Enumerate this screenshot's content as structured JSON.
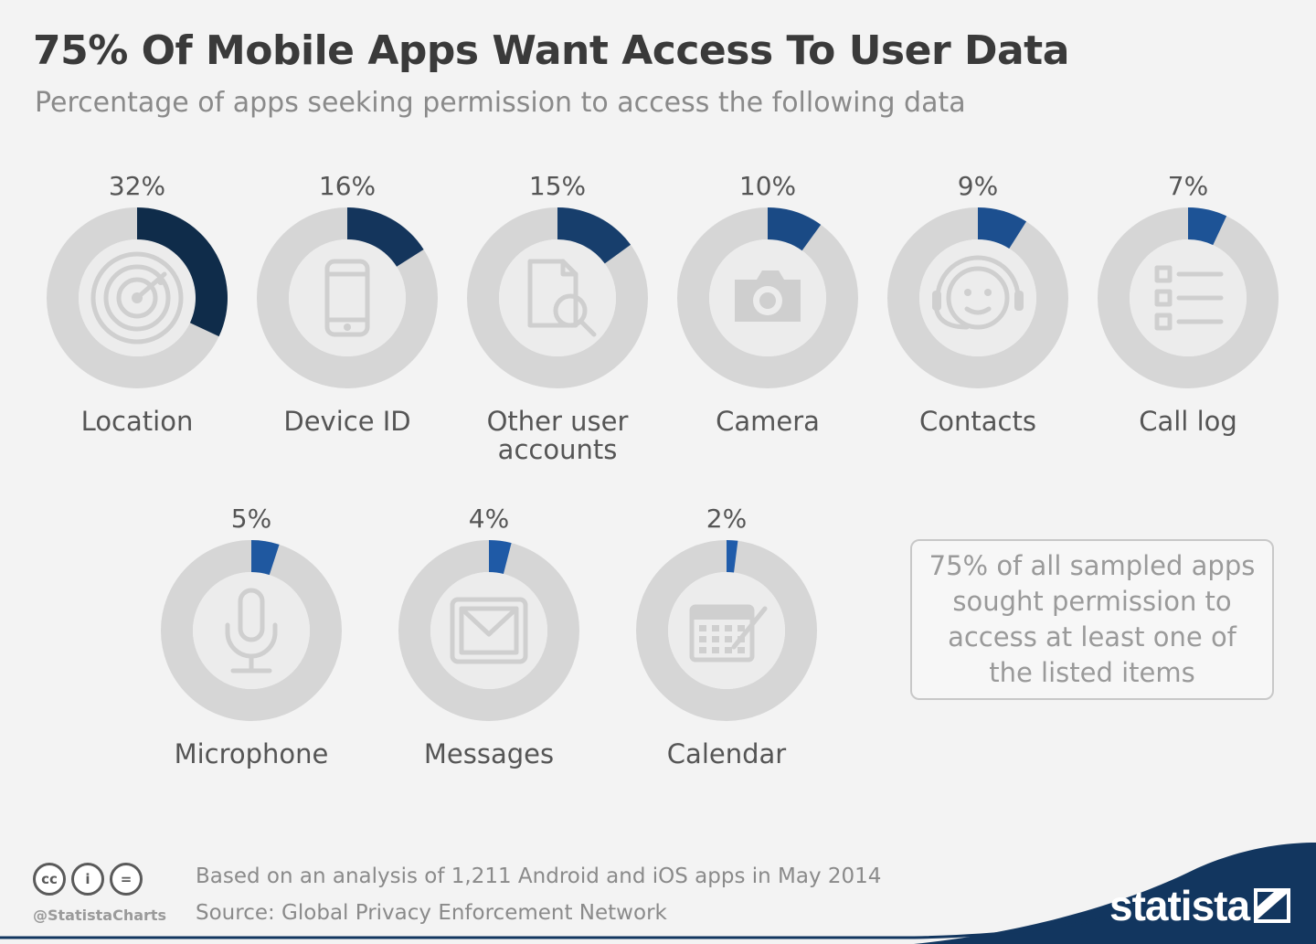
{
  "title": "75% Of Mobile Apps Want Access To User Data",
  "subtitle": "Percentage of apps seeking permission to access the following data",
  "note": "75% of all sampled apps sought permission to access at least one of the listed items",
  "footer": {
    "license_icons": [
      "cc-icon",
      "person-icon",
      "equals-icon"
    ],
    "license_glyphs": [
      "cc",
      "i",
      "="
    ],
    "handle": "@StatistaCharts",
    "based_on": "Based on an analysis of 1,211 Android and iOS apps in May 2014",
    "source": "Source: Global Privacy Enforcement Network",
    "brand": "statista"
  },
  "colors": {
    "background": "#f3f3f3",
    "ring_track": "#d6d6d6",
    "ring_inner": "#ececec",
    "icon": "#cfcfcf",
    "accent_dark": "#0f2c4a",
    "accent_mid": "#173e6c",
    "accent_bright": "#1f5aa6",
    "brand_wave": "#12365f"
  },
  "chart_data": {
    "type": "donut",
    "unit": "%",
    "items": [
      {
        "label": "Location",
        "value": 32,
        "value_label": "32%",
        "icon": "radar-icon",
        "color": "#0f2c4a"
      },
      {
        "label": "Device ID",
        "value": 16,
        "value_label": "16%",
        "icon": "smartphone-icon",
        "color": "#14355c"
      },
      {
        "label": "Other user accounts",
        "value": 15,
        "value_label": "15%",
        "icon": "document-search-icon",
        "color": "#173e6c"
      },
      {
        "label": "Camera",
        "value": 10,
        "value_label": "10%",
        "icon": "camera-icon",
        "color": "#1a4a85"
      },
      {
        "label": "Contacts",
        "value": 9,
        "value_label": "9%",
        "icon": "headset-face-icon",
        "color": "#1c4f8f"
      },
      {
        "label": "Call log",
        "value": 7,
        "value_label": "7%",
        "icon": "checklist-icon",
        "color": "#1d5396"
      },
      {
        "label": "Microphone",
        "value": 5,
        "value_label": "5%",
        "icon": "microphone-icon",
        "color": "#1f58a0"
      },
      {
        "label": "Messages",
        "value": 4,
        "value_label": "4%",
        "icon": "envelope-icon",
        "color": "#1f5aa6"
      },
      {
        "label": "Calendar",
        "value": 2,
        "value_label": "2%",
        "icon": "calendar-pencil-icon",
        "color": "#205caa"
      }
    ]
  }
}
